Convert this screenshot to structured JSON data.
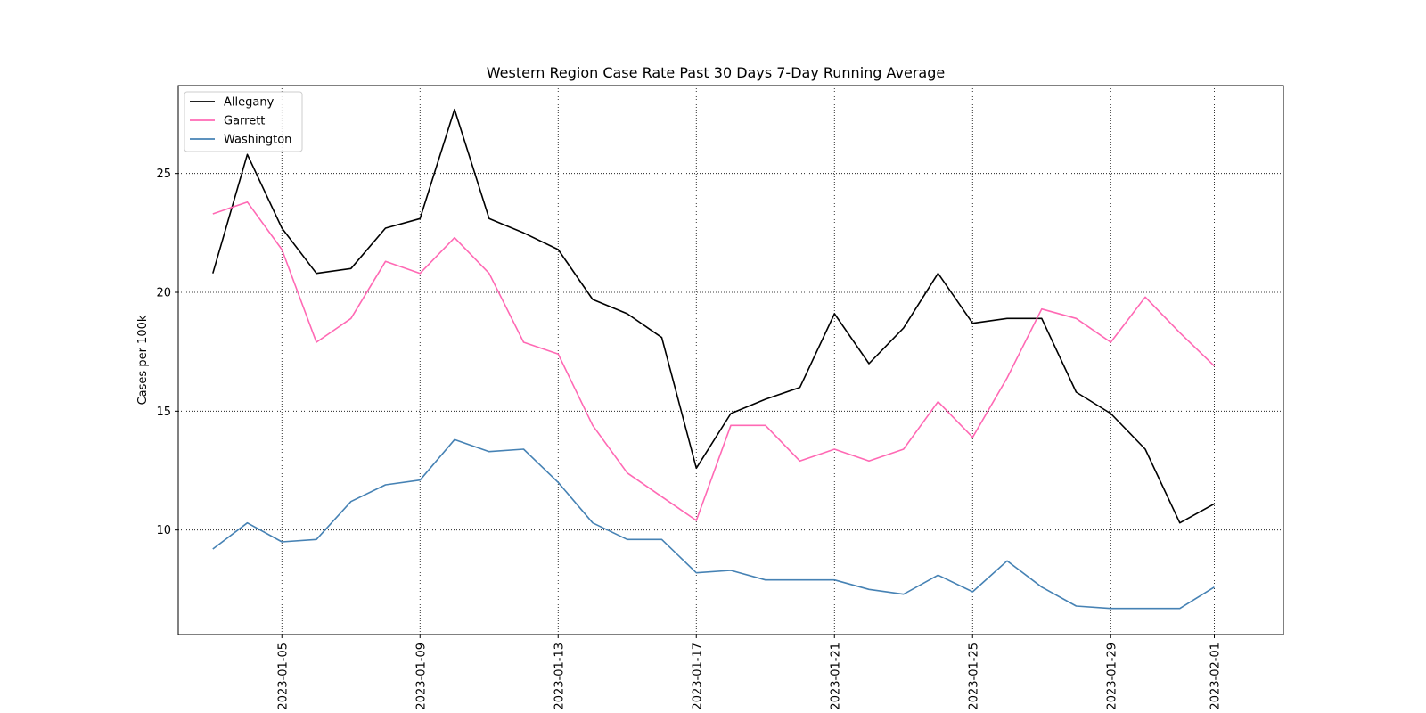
{
  "chart_data": {
    "type": "line",
    "title": "Western Region Case Rate  Past 30 Days 7-Day Running Average",
    "xlabel": "",
    "ylabel": "Cases per 100k",
    "x": [
      "2023-01-03",
      "2023-01-04",
      "2023-01-05",
      "2023-01-06",
      "2023-01-07",
      "2023-01-08",
      "2023-01-09",
      "2023-01-10",
      "2023-01-11",
      "2023-01-12",
      "2023-01-13",
      "2023-01-14",
      "2023-01-15",
      "2023-01-16",
      "2023-01-17",
      "2023-01-18",
      "2023-01-19",
      "2023-01-20",
      "2023-01-21",
      "2023-01-22",
      "2023-01-23",
      "2023-01-24",
      "2023-01-25",
      "2023-01-26",
      "2023-01-27",
      "2023-01-28",
      "2023-01-29",
      "2023-01-30",
      "2023-01-31",
      "2023-02-01",
      "2023-02-02"
    ],
    "xticks": [
      "2023-01-05",
      "2023-01-09",
      "2023-01-13",
      "2023-01-17",
      "2023-01-21",
      "2023-01-25",
      "2023-01-29",
      "2023-02-01"
    ],
    "xlim": [
      "2023-01-02",
      "2023-02-03"
    ],
    "yticks": [
      10,
      15,
      20,
      25
    ],
    "ylim": [
      5.6,
      28.7
    ],
    "grid": true,
    "legend_position": "upper-left",
    "series": [
      {
        "name": "Allegany",
        "color": "#000000",
        "values": [
          20.8,
          25.8,
          22.7,
          20.8,
          21.0,
          22.7,
          23.1,
          27.7,
          23.1,
          22.5,
          21.8,
          19.7,
          19.1,
          18.1,
          12.6,
          14.9,
          15.5,
          16.0,
          19.1,
          17.0,
          18.5,
          20.8,
          18.7,
          18.9,
          18.9,
          15.8,
          14.9,
          13.4,
          10.3,
          11.1,
          null
        ]
      },
      {
        "name": "Garrett",
        "color": "#ff69b4",
        "values": [
          23.3,
          23.8,
          21.8,
          17.9,
          18.9,
          21.3,
          20.8,
          22.3,
          20.8,
          17.9,
          17.4,
          14.4,
          12.4,
          11.4,
          10.4,
          14.4,
          14.4,
          12.9,
          13.4,
          12.9,
          13.4,
          15.4,
          13.9,
          16.4,
          19.3,
          18.9,
          17.9,
          19.8,
          18.3,
          16.9,
          null
        ]
      },
      {
        "name": "Washington",
        "color": "#4682b4",
        "values": [
          9.2,
          10.3,
          9.5,
          9.6,
          11.2,
          11.9,
          12.1,
          13.8,
          13.3,
          13.4,
          12.0,
          10.3,
          9.6,
          9.6,
          8.2,
          8.3,
          7.9,
          7.9,
          7.9,
          7.5,
          7.3,
          8.1,
          7.4,
          8.7,
          7.6,
          6.8,
          6.7,
          6.7,
          6.7,
          7.6,
          null
        ]
      }
    ]
  }
}
